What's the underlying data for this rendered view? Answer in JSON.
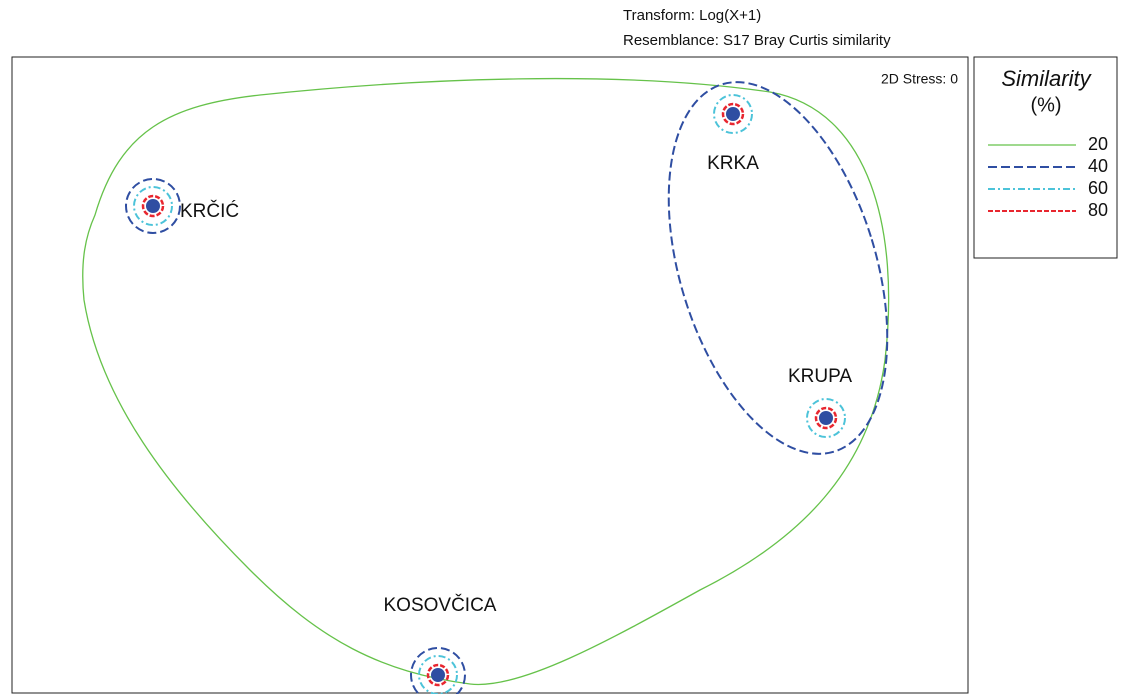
{
  "chart_data": {
    "type": "nmds",
    "transform": "Transform: Log(X+1)",
    "resemblance": "Resemblance: S17 Bray Curtis similarity",
    "stress": "2D Stress: 0",
    "legend": {
      "title": "Similarity",
      "unit": "(%)",
      "entries": [
        {
          "value": 20,
          "color": "#66c24a"
        },
        {
          "value": 40,
          "color": "#2f4ea2"
        },
        {
          "value": 60,
          "color": "#4cc3d9"
        },
        {
          "value": 80,
          "color": "#e8262f"
        }
      ]
    },
    "sites": [
      "KRČIĆ",
      "KRKA",
      "KRUPA",
      "KOSOVČICA"
    ],
    "point_color": "#2f4ea2"
  }
}
